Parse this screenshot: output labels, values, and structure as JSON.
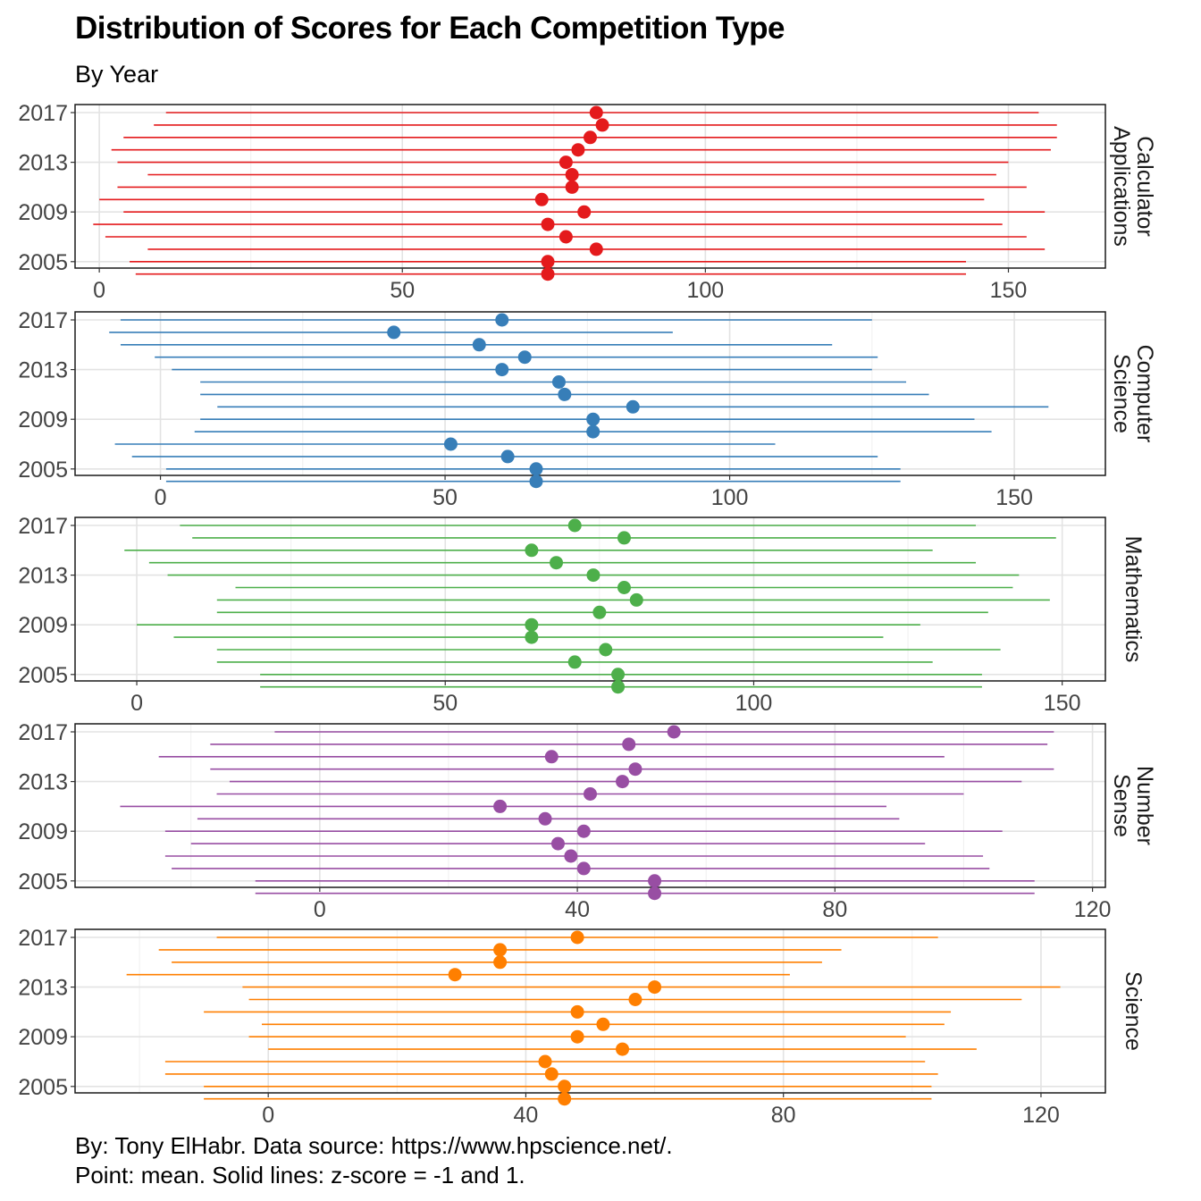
{
  "title": "Distribution of Scores for Each Competition Type",
  "subtitle": "By Year",
  "caption": [
    "By: Tony ElHabr. Data source: https://www.hpscience.net/.",
    "Point: mean. Solid lines: z-score = -1 and 1."
  ],
  "chart_data": {
    "type": "scatter",
    "years": [
      2017,
      2016,
      2015,
      2014,
      2013,
      2012,
      2011,
      2010,
      2009,
      2008,
      2007,
      2006,
      2005,
      2004
    ],
    "y_ticks": [
      "2017",
      "2013",
      "2009",
      "2005"
    ],
    "grid": true,
    "panels": [
      {
        "strip": [
          "Calculator",
          "Applications"
        ],
        "color": "#E41A1C",
        "xlim": [
          -4,
          166
        ],
        "x_ticks": [
          0,
          50,
          100,
          150
        ],
        "mean": [
          82,
          83,
          81,
          79,
          77,
          78,
          78,
          73,
          80,
          74,
          77,
          82,
          74,
          74
        ],
        "low": [
          11,
          9,
          4,
          2,
          3,
          8,
          3,
          0,
          4,
          -1,
          1,
          8,
          5,
          6
        ],
        "high": [
          155,
          158,
          158,
          157,
          150,
          148,
          153,
          146,
          156,
          149,
          153,
          156,
          143,
          143
        ]
      },
      {
        "strip": [
          "Computer",
          "Science"
        ],
        "color": "#377EB8",
        "xlim": [
          -15,
          166
        ],
        "x_ticks": [
          0,
          50,
          100,
          150
        ],
        "mean": [
          60,
          41,
          56,
          64,
          60,
          70,
          71,
          83,
          76,
          76,
          51,
          61,
          66,
          66
        ],
        "low": [
          -7,
          -9,
          -7,
          -1,
          2,
          7,
          7,
          10,
          7,
          6,
          -8,
          -5,
          1,
          1
        ],
        "high": [
          125,
          90,
          118,
          126,
          125,
          131,
          135,
          156,
          143,
          146,
          108,
          126,
          130,
          130
        ]
      },
      {
        "strip": [
          "Mathematics"
        ],
        "color": "#4DAF4A",
        "xlim": [
          -10,
          157
        ],
        "x_ticks": [
          0,
          50,
          100,
          150
        ],
        "mean": [
          71,
          79,
          64,
          68,
          74,
          79,
          81,
          75,
          64,
          64,
          76,
          71,
          78,
          78
        ],
        "low": [
          7,
          9,
          -2,
          2,
          5,
          16,
          13,
          13,
          0,
          6,
          13,
          13,
          20,
          20
        ],
        "high": [
          136,
          149,
          129,
          136,
          143,
          142,
          148,
          138,
          127,
          121,
          140,
          129,
          137,
          137
        ]
      },
      {
        "strip": [
          "Number",
          "Sense"
        ],
        "color": "#984EA3",
        "xlim": [
          -38,
          122
        ],
        "x_ticks": [
          0,
          40,
          80,
          120
        ],
        "mean": [
          55,
          48,
          36,
          49,
          47,
          42,
          28,
          35,
          41,
          37,
          39,
          41,
          52,
          52
        ],
        "low": [
          -7,
          -17,
          -25,
          -17,
          -14,
          -16,
          -31,
          -19,
          -24,
          -20,
          -24,
          -23,
          -10,
          -10
        ],
        "high": [
          114,
          113,
          97,
          114,
          109,
          100,
          88,
          90,
          106,
          94,
          103,
          104,
          111,
          111
        ]
      },
      {
        "strip": [
          "Science"
        ],
        "color": "#FF7F00",
        "xlim": [
          -30,
          130
        ],
        "x_ticks": [
          0,
          40,
          80,
          120
        ],
        "mean": [
          48,
          36,
          36,
          29,
          60,
          57,
          48,
          52,
          48,
          55,
          43,
          44,
          46,
          46
        ],
        "low": [
          -8,
          -17,
          -15,
          -22,
          -4,
          -3,
          -10,
          -1,
          -3,
          0,
          -16,
          -16,
          -10,
          -10
        ],
        "high": [
          104,
          89,
          86,
          81,
          123,
          117,
          106,
          105,
          99,
          110,
          102,
          104,
          103,
          103
        ]
      }
    ]
  }
}
